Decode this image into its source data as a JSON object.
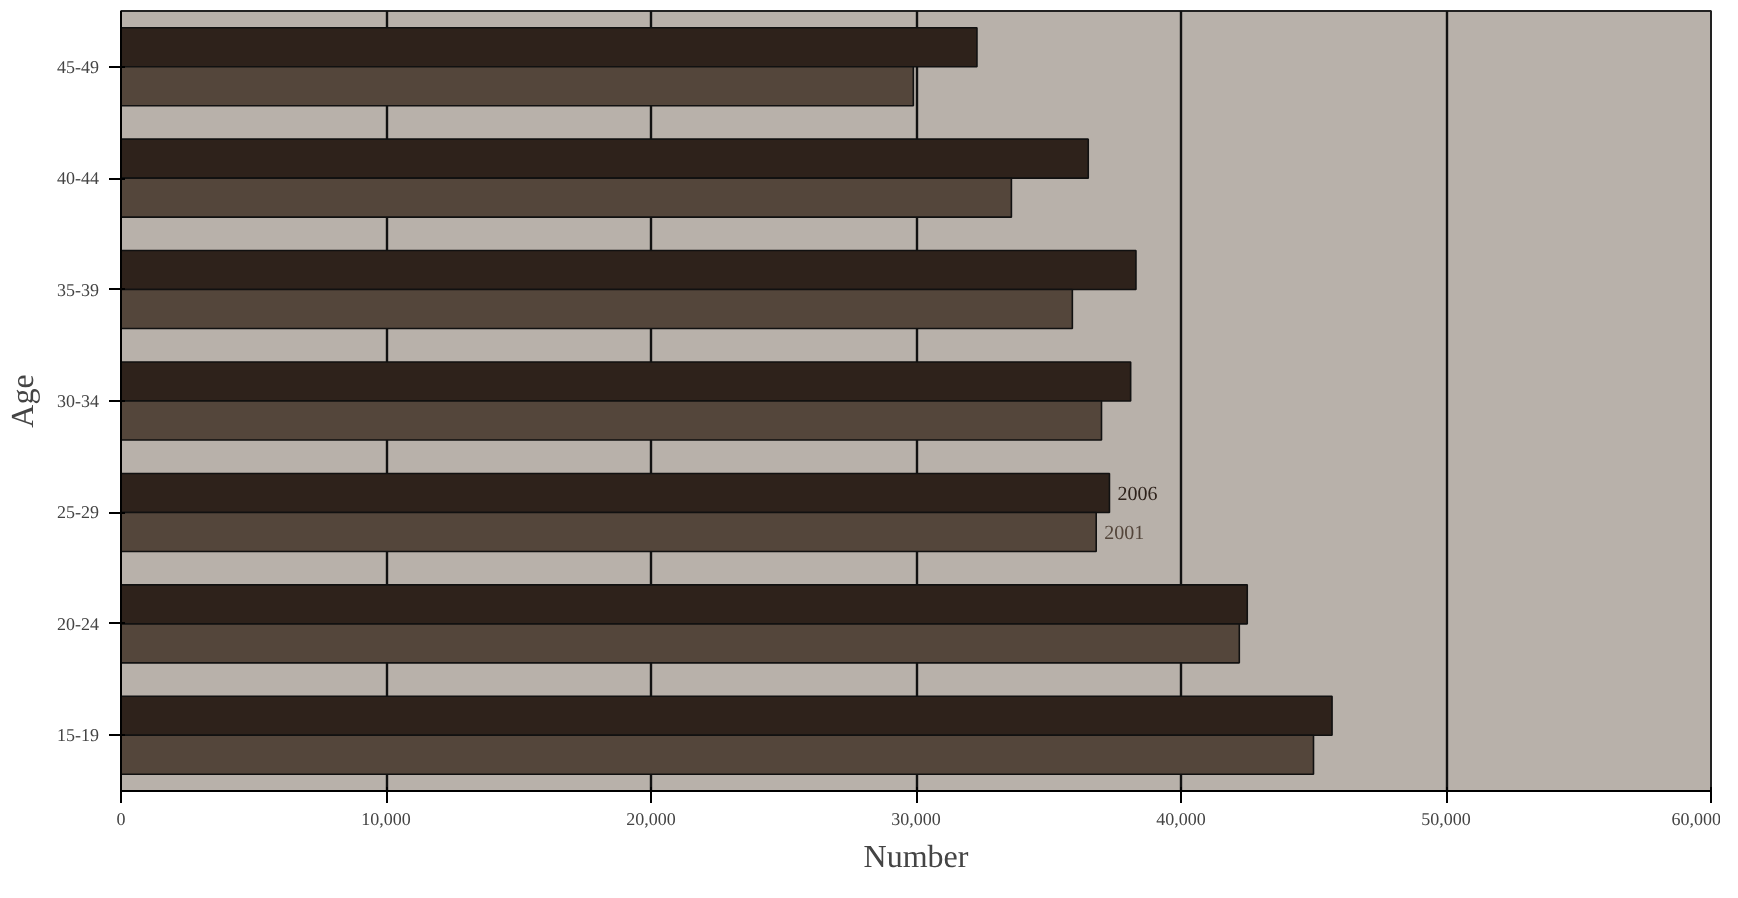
{
  "chart_data": {
    "type": "bar",
    "orientation": "horizontal",
    "xlabel": "Number",
    "ylabel": "Age",
    "categories": [
      "45-49",
      "40-44",
      "35-39",
      "30-34",
      "25-29",
      "20-24",
      "15-19"
    ],
    "series": [
      {
        "name": "2006",
        "color": "#2e221b",
        "values": [
          32300,
          36500,
          38300,
          38100,
          37300,
          42500,
          45700
        ]
      },
      {
        "name": "2001",
        "color": "#54463b",
        "values": [
          29900,
          33600,
          35900,
          37000,
          36800,
          42200,
          45000
        ]
      }
    ],
    "xlim": [
      0,
      60000
    ],
    "xticks": [
      0,
      {
        "value": 10000,
        "label": "10,000"
      },
      {
        "value": 20000,
        "label": "20,000"
      },
      {
        "value": 30000,
        "label": "30,000"
      },
      {
        "value": 40000,
        "label": "40,000"
      },
      {
        "value": 50000,
        "label": "50,000"
      },
      {
        "value": 60000,
        "label": "60,000"
      }
    ],
    "grid": "x",
    "legend": false
  }
}
